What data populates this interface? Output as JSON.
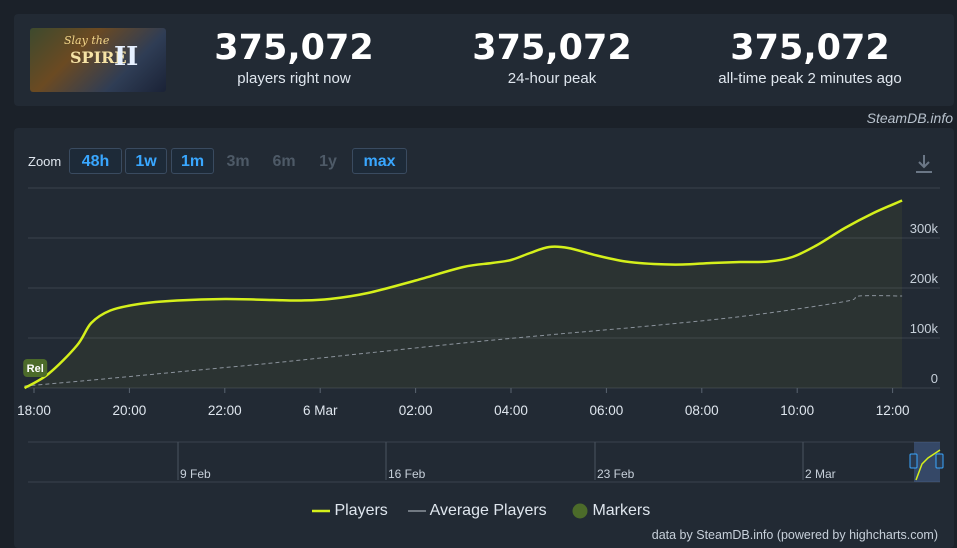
{
  "game": {
    "title_line1": "Slay the",
    "title_line2": "SPIRE",
    "title_numeral": "II"
  },
  "stats": [
    {
      "value": "375,072",
      "label": "players right now"
    },
    {
      "value": "375,072",
      "label": "24-hour peak"
    },
    {
      "value": "375,072",
      "label": "all-time peak 2 minutes ago"
    }
  ],
  "credit_top": "SteamDB.info",
  "zoom": {
    "label": "Zoom",
    "buttons": [
      {
        "label": "48h",
        "enabled": true
      },
      {
        "label": "1w",
        "enabled": true
      },
      {
        "label": "1m",
        "enabled": true
      },
      {
        "label": "3m",
        "enabled": false
      },
      {
        "label": "6m",
        "enabled": false
      },
      {
        "label": "1y",
        "enabled": false
      },
      {
        "label": "max",
        "enabled": true
      }
    ]
  },
  "legend": {
    "players": "Players",
    "average": "Average Players",
    "markers": "Markers"
  },
  "credit_bottom": "data by SteamDB.info (powered by highcharts.com)",
  "colors": {
    "players": "#d5f01b",
    "average": "#8b939c",
    "marker": "#4c6b2a",
    "accent": "#39a7ff"
  },
  "chart_data": {
    "type": "line",
    "x_unit": "hours since 18:00",
    "x_ticks": [
      "18:00",
      "20:00",
      "22:00",
      "6 Mar",
      "02:00",
      "04:00",
      "06:00",
      "08:00",
      "10:00",
      "12:00"
    ],
    "y_ticks": [
      "0",
      "100k",
      "200k",
      "300k"
    ],
    "ylim": [
      0,
      400000
    ],
    "series": [
      {
        "name": "Players",
        "points": [
          [
            -0.2,
            0
          ],
          [
            0.3,
            28000
          ],
          [
            0.9,
            85000
          ],
          [
            1.2,
            130000
          ],
          [
            1.6,
            155000
          ],
          [
            2.2,
            168000
          ],
          [
            3.0,
            175000
          ],
          [
            4.0,
            178000
          ],
          [
            5.0,
            176000
          ],
          [
            5.6,
            175000
          ],
          [
            6.2,
            178000
          ],
          [
            7.0,
            190000
          ],
          [
            8.0,
            215000
          ],
          [
            9.0,
            242000
          ],
          [
            9.6,
            250000
          ],
          [
            10.0,
            256000
          ],
          [
            10.4,
            270000
          ],
          [
            10.8,
            282000
          ],
          [
            11.2,
            280000
          ],
          [
            11.8,
            265000
          ],
          [
            12.4,
            253000
          ],
          [
            13.0,
            248000
          ],
          [
            13.6,
            247000
          ],
          [
            14.2,
            250000
          ],
          [
            14.8,
            252000
          ],
          [
            15.4,
            253000
          ],
          [
            15.9,
            262000
          ],
          [
            16.4,
            285000
          ],
          [
            17.0,
            320000
          ],
          [
            17.6,
            350000
          ],
          [
            18.2,
            375072
          ]
        ]
      },
      {
        "name": "Average Players",
        "points": [
          [
            -0.2,
            4000
          ],
          [
            1.0,
            14000
          ],
          [
            3.0,
            32000
          ],
          [
            5.0,
            50000
          ],
          [
            7.0,
            70000
          ],
          [
            9.0,
            90000
          ],
          [
            11.0,
            108000
          ],
          [
            13.0,
            125000
          ],
          [
            15.0,
            145000
          ],
          [
            17.0,
            173000
          ],
          [
            17.3,
            184000
          ],
          [
            18.2,
            184000
          ]
        ]
      }
    ],
    "markers": [
      {
        "x": -0.1,
        "y": 40000,
        "label": "Rel"
      }
    ],
    "navigator": {
      "ticks": [
        "9 Feb",
        "16 Feb",
        "23 Feb",
        "2 Mar"
      ]
    },
    "grid": true
  }
}
